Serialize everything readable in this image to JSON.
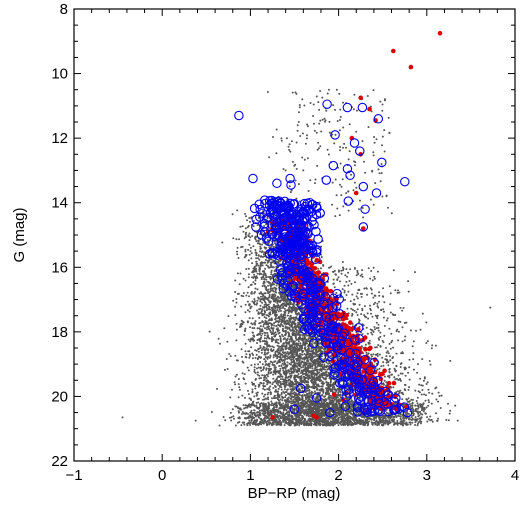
{
  "chart_data": {
    "type": "scatter",
    "title": "",
    "xlabel": "BP−RP (mag)",
    "ylabel": "G (mag)",
    "xlim": [
      -1,
      4
    ],
    "ylim": [
      22,
      8
    ],
    "y_inverted": true,
    "grid": false,
    "legend": "none",
    "x_ticks": [
      -1,
      0,
      1,
      2,
      3,
      4
    ],
    "y_ticks": [
      8,
      10,
      12,
      14,
      16,
      18,
      20,
      22
    ],
    "x_tick_labels": [
      "−1",
      "0",
      "1",
      "2",
      "3",
      "4"
    ],
    "y_tick_labels": [
      "8",
      "10",
      "12",
      "14",
      "16",
      "18",
      "20",
      "22"
    ],
    "series": [
      {
        "marker": "small-dot",
        "color": "#555555",
        "distribution": "dense field-star cloud, about 6000 points; main locus BP-RP ~1.2 to 2.6 for G 14.5 to 20.9, lower edge near G 20.8 spanning BP-RP 0.7 to 3.0, sparse bright points up to G ~10.5 near BP-RP 1.9 to 2.3",
        "points": [
          [
            -0.45,
            20.65
          ],
          [
            0.38,
            20.75
          ],
          [
            0.65,
            20.9
          ],
          [
            3.72,
            17.25
          ],
          [
            1.89,
            10.5
          ],
          [
            2.05,
            10.9
          ],
          [
            2.2,
            11.8
          ],
          [
            1.78,
            11.55
          ],
          [
            1.6,
            13.0
          ],
          [
            1.42,
            13.9
          ],
          [
            2.05,
            12.3
          ],
          [
            2.9,
            19.0
          ],
          [
            2.95,
            19.8
          ],
          [
            2.5,
            20.9
          ],
          [
            1.0,
            20.6
          ],
          [
            0.8,
            20.4
          ]
        ]
      },
      {
        "marker": "filled-circle",
        "color": "#dd0000",
        "distribution": "about 700 members along the red giant branch/main sequence from BP-RP ~1.3 at G 14.5 to BP-RP ~2.9 at G 20.2",
        "points": [
          [
            3.15,
            8.75
          ],
          [
            2.62,
            9.3
          ],
          [
            2.82,
            9.8
          ],
          [
            2.25,
            10.75
          ],
          [
            2.35,
            11.1
          ],
          [
            2.42,
            11.45
          ],
          [
            2.15,
            12.0
          ],
          [
            2.25,
            12.5
          ],
          [
            2.28,
            14.8
          ],
          [
            2.2,
            13.7
          ],
          [
            1.72,
            20.6
          ],
          [
            1.75,
            20.65
          ],
          [
            1.25,
            20.65
          ],
          [
            1.95,
            19.95
          ],
          [
            2.05,
            20.1
          ],
          [
            2.32,
            20.45
          ]
        ]
      },
      {
        "marker": "open-circle",
        "color": "#0000ee",
        "distribution": "about 500 members; very dense upper band BP-RP 1.3 to 1.8 at G 14 to 16, continuing down to BP-RP ~2.8 at G 20.5",
        "points": [
          [
            0.87,
            11.3
          ],
          [
            1.03,
            13.25
          ],
          [
            1.1,
            14.05
          ],
          [
            1.3,
            13.4
          ],
          [
            1.46,
            13.45
          ],
          [
            1.45,
            13.25
          ],
          [
            1.87,
            10.95
          ],
          [
            2.1,
            11.05
          ],
          [
            2.27,
            11.05
          ],
          [
            2.45,
            11.4
          ],
          [
            1.96,
            11.9
          ],
          [
            2.18,
            12.15
          ],
          [
            2.24,
            12.4
          ],
          [
            2.49,
            12.75
          ],
          [
            1.94,
            12.85
          ],
          [
            2.1,
            12.95
          ],
          [
            2.13,
            13.15
          ],
          [
            1.86,
            13.3
          ],
          [
            2.28,
            13.5
          ],
          [
            2.43,
            13.7
          ],
          [
            2.11,
            13.95
          ],
          [
            2.3,
            14.2
          ],
          [
            2.75,
            13.35
          ],
          [
            2.28,
            14.75
          ],
          [
            2.78,
            20.5
          ],
          [
            2.65,
            20.05
          ],
          [
            1.9,
            20.5
          ],
          [
            1.5,
            20.4
          ],
          [
            1.57,
            19.75
          ],
          [
            1.75,
            20.05
          ]
        ]
      }
    ]
  }
}
